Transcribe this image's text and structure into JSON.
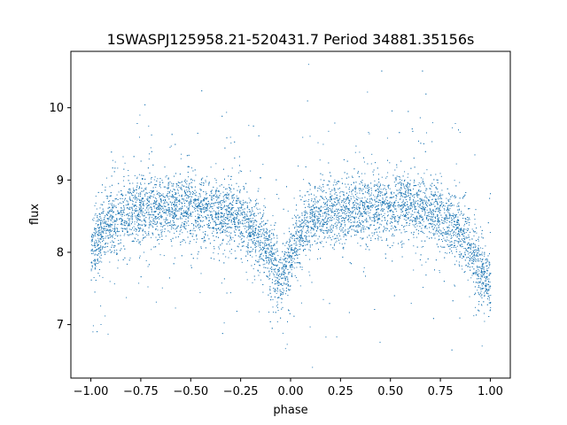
{
  "chart_data": {
    "type": "scatter",
    "title": "1SWASPJ125958.21-520431.7 Period 34881.35156s",
    "xlabel": "phase",
    "ylabel": "flux",
    "xlim": [
      -1.1,
      1.1
    ],
    "ylim": [
      6.26,
      10.78
    ],
    "xticks": [
      -1.0,
      -0.75,
      -0.5,
      -0.25,
      0.0,
      0.25,
      0.5,
      0.75,
      1.0
    ],
    "xtick_labels": [
      "−1.00",
      "−0.75",
      "−0.50",
      "−0.25",
      "0.00",
      "0.25",
      "0.50",
      "0.75",
      "1.00"
    ],
    "yticks": [
      7,
      8,
      9,
      10
    ],
    "ytick_labels": [
      "7",
      "8",
      "9",
      "10"
    ],
    "grid": false,
    "legend": "none",
    "point_color": "#1f77b4",
    "series": [
      {
        "x_range": [
          -1.0,
          1.0
        ],
        "trend": [
          {
            "phase": -1.0,
            "flux": 7.95
          },
          {
            "phase": -0.95,
            "flux": 8.3
          },
          {
            "phase": -0.9,
            "flux": 8.45
          },
          {
            "phase": -0.75,
            "flux": 8.6
          },
          {
            "phase": -0.6,
            "flux": 8.63
          },
          {
            "phase": -0.5,
            "flux": 8.62
          },
          {
            "phase": -0.35,
            "flux": 8.57
          },
          {
            "phase": -0.25,
            "flux": 8.45
          },
          {
            "phase": -0.15,
            "flux": 8.2
          },
          {
            "phase": -0.1,
            "flux": 7.95
          },
          {
            "phase": -0.05,
            "flux": 7.6
          },
          {
            "phase": 0.0,
            "flux": 7.9
          },
          {
            "phase": 0.05,
            "flux": 8.3
          },
          {
            "phase": 0.1,
            "flux": 8.45
          },
          {
            "phase": 0.25,
            "flux": 8.58
          },
          {
            "phase": 0.4,
            "flux": 8.62
          },
          {
            "phase": 0.55,
            "flux": 8.64
          },
          {
            "phase": 0.7,
            "flux": 8.58
          },
          {
            "phase": 0.8,
            "flux": 8.42
          },
          {
            "phase": 0.88,
            "flux": 8.2
          },
          {
            "phase": 0.95,
            "flux": 7.75
          },
          {
            "phase": 1.0,
            "flux": 7.6
          }
        ]
      }
    ]
  }
}
